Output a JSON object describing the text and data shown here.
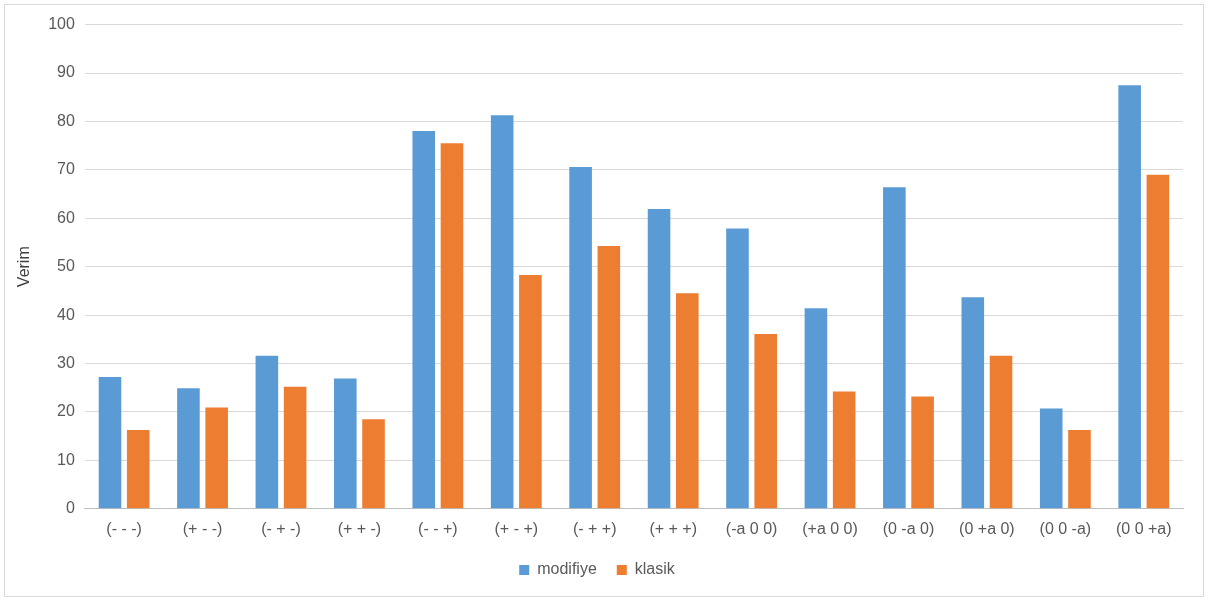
{
  "chart_data": {
    "type": "bar",
    "ylabel": "Verim",
    "categories": [
      "(- - -)",
      "(+ - -)",
      "(- + -)",
      "(+ + -)",
      "(- - +)",
      "(+ - +)",
      "(- + +)",
      "(+ + +)",
      "(-a 0 0)",
      "(+a 0 0)",
      "(0 -a 0)",
      "(0 +a 0)",
      "(0 0 -a)",
      "(0 0 +a)"
    ],
    "series": [
      {
        "name": "modifiye",
        "color": "#5b9bd5",
        "values": [
          27.2,
          24.9,
          31.6,
          26.9,
          78,
          81.3,
          70.6,
          61.9,
          57.9,
          41.4,
          66.4,
          43.7,
          20.7,
          87.5
        ]
      },
      {
        "name": "klasik",
        "color": "#ed7d31",
        "values": [
          16.3,
          20.9,
          25.2,
          18.5,
          75.5,
          48.3,
          54.3,
          44.5,
          36.1,
          24.2,
          23.2,
          31.6,
          16.3,
          69
        ]
      }
    ],
    "ylim": [
      0,
      100
    ],
    "yticks": [
      0,
      10,
      20,
      30,
      40,
      50,
      60,
      70,
      80,
      90,
      100
    ],
    "grid": "y",
    "legend": "bottom"
  }
}
